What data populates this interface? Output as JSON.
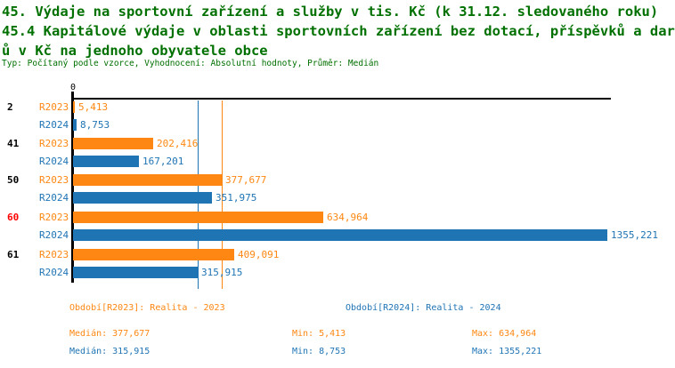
{
  "title": {
    "line1": "45. Výdaje na sportovní zařízení a služby v tis. Kč (k 31.12. sledovaného roku)",
    "line2": "45.4 Kapitálové výdaje v oblasti sportovních zařízení bez dotací, příspěvků a dar",
    "line3": "ů v Kč na jednoho obyvatele obce",
    "subtitle": "Typ: Počítaný podle vzorce, Vyhodnocení: Absolutní hodnoty, Průměr: Medián"
  },
  "colors": {
    "orange": "#fd8712",
    "blue": "#1f74b4",
    "highlight_red": "#ff0000",
    "title_green": "#007000",
    "axis_black": "#000000"
  },
  "chart_data": {
    "type": "bar",
    "orientation": "horizontal",
    "title": "45.4 Kapitálové výdaje v oblasti sportovních zařízení bez dotací, příspěvků a darů v Kč na jednoho obyvatele obce",
    "categories": [
      "2",
      "41",
      "50",
      "60",
      "61"
    ],
    "highlighted_category": "60",
    "axis": {
      "zero_label": "0",
      "xlim": [
        0,
        1366
      ],
      "grid": false
    },
    "series": [
      {
        "id": "R2023",
        "period_label": "Období[R2023]: Realita - 2023",
        "color_key": "orange",
        "values": [
          5.413,
          202.416,
          377.677,
          634.964,
          409.091
        ],
        "value_labels": [
          "5,413",
          "202,416",
          "377,677",
          "634,964",
          "409,091"
        ],
        "median": 377.677,
        "stats": {
          "median_label": "Medián: 377,677",
          "min_label": "Min: 5,413",
          "max_label": "Max: 634,964"
        }
      },
      {
        "id": "R2024",
        "period_label": "Období[R2024]: Realita - 2024",
        "color_key": "blue",
        "values": [
          8.753,
          167.201,
          351.975,
          1355.221,
          315.915
        ],
        "value_labels": [
          "8,753",
          "167,201",
          "351,975",
          "1355,221",
          "315,915"
        ],
        "median": 315.915,
        "stats": {
          "median_label": "Medián: 315,915",
          "min_label": "Min: 8,753",
          "max_label": "Max: 1355,221"
        }
      }
    ],
    "median_lines": [
      {
        "series": "R2023",
        "value": 377.677
      },
      {
        "series": "R2024",
        "value": 315.915
      }
    ],
    "legend_position": "bottom"
  }
}
